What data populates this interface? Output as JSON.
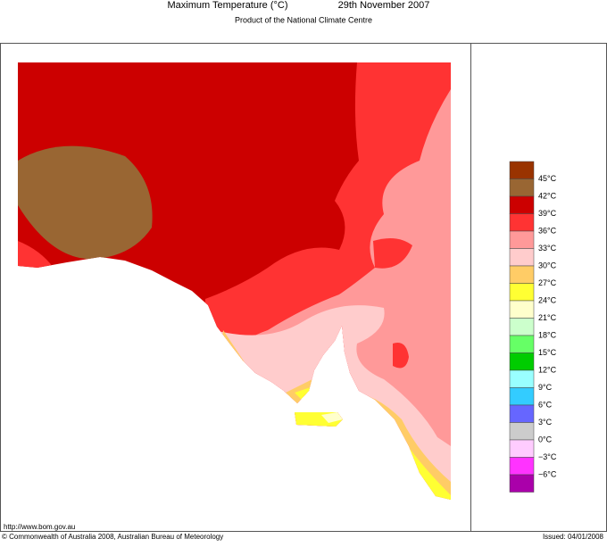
{
  "header": {
    "title": "Maximum Temperature (°C)",
    "date": "29th November 2007",
    "subtitle": "Product of the National Climate Centre"
  },
  "legend": {
    "labels": [
      "45°C",
      "42°C",
      "39°C",
      "36°C",
      "33°C",
      "30°C",
      "27°C",
      "24°C",
      "21°C",
      "18°C",
      "15°C",
      "12°C",
      "9°C",
      "6°C",
      "3°C",
      "0°C",
      "−3°C",
      "−6°C"
    ],
    "colors": [
      "#993300",
      "#996633",
      "#cc0000",
      "#ff3333",
      "#ff9999",
      "#ffcccc",
      "#ffcc66",
      "#ffff33",
      "#ffffcc",
      "#ccffcc",
      "#66ff66",
      "#00cc00",
      "#99ffff",
      "#33ccff",
      "#6666ff",
      "#cccccc",
      "#ffccff",
      "#ff33ff",
      "#aa00aa"
    ]
  },
  "footer": {
    "url": "http://www.bom.gov.au",
    "copyright": "© Commonwealth of Australia 2008, Australian Bureau of Meteorology",
    "issued": "Issued: 04/01/2008"
  }
}
